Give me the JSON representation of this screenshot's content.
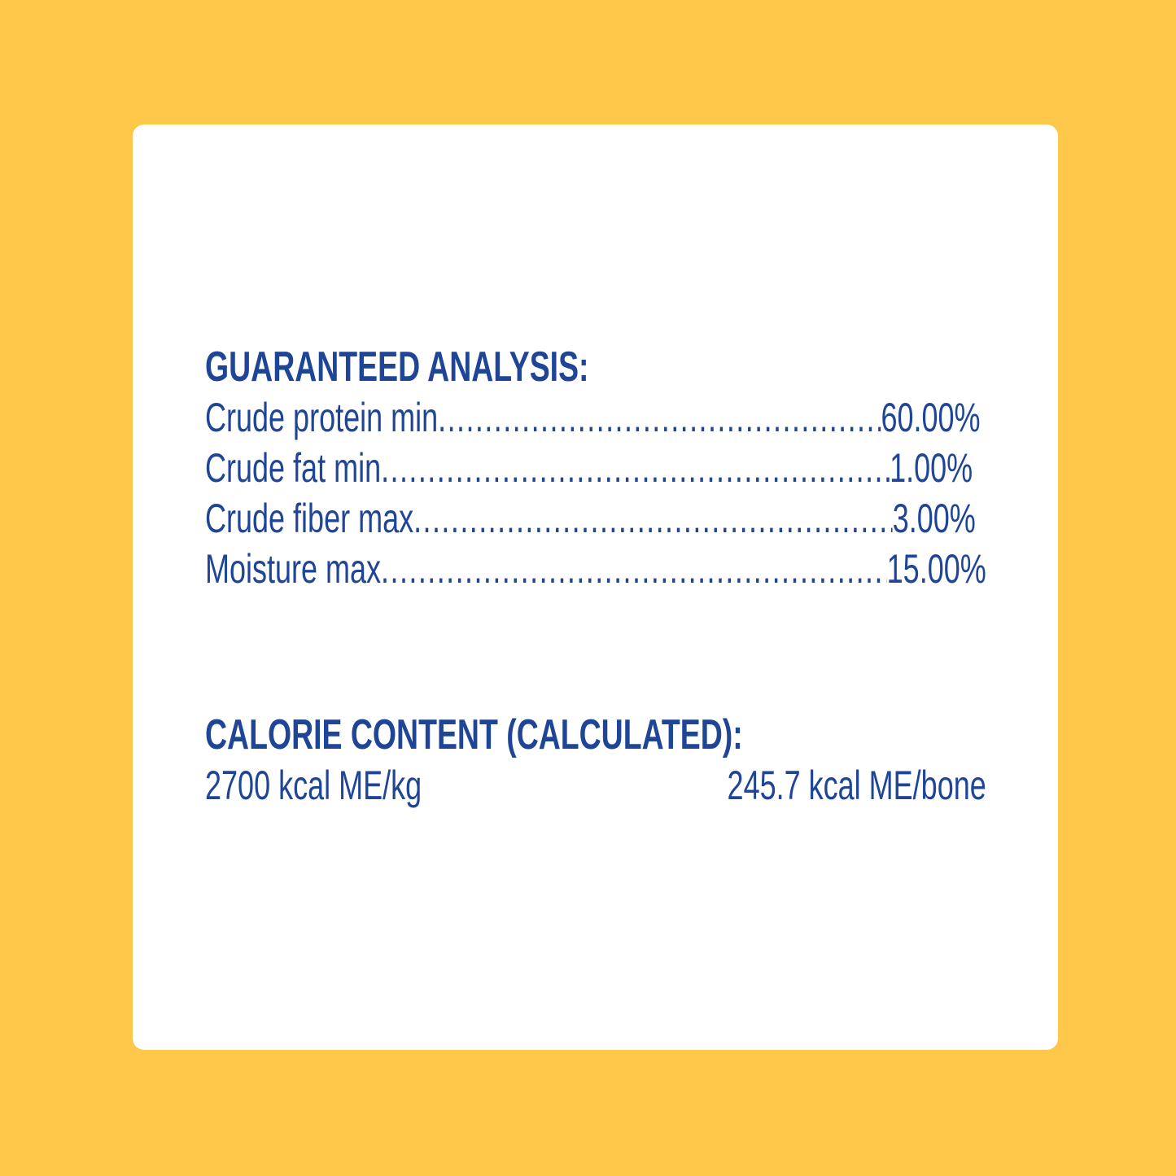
{
  "colors": {
    "background": "#FEC84A",
    "card": "#FFFFFF",
    "text": "#1F4597"
  },
  "guaranteed_analysis": {
    "heading": "GUARANTEED ANALYSIS:",
    "rows": [
      {
        "label": "Crude protein min",
        "value": "60.00%"
      },
      {
        "label": "Crude fat min",
        "value": "1.00%"
      },
      {
        "label": "Crude fiber max",
        "value": "3.00%"
      },
      {
        "label": "Moisture max",
        "value": "15.00%"
      }
    ]
  },
  "calorie_content": {
    "heading": "CALORIE CONTENT (CALCULATED):",
    "per_kg": "2700 kcal ME/kg",
    "per_bone": "245.7 kcal ME/bone"
  }
}
